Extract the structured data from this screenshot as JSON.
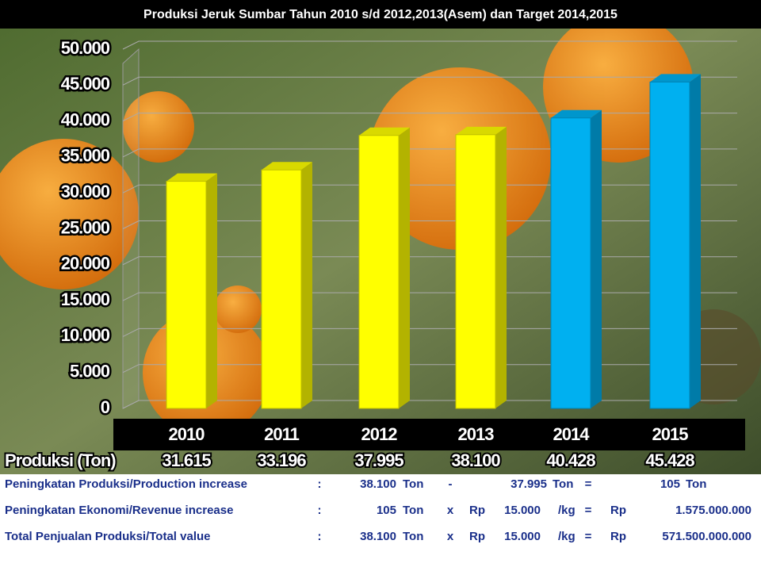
{
  "chart_data": {
    "type": "bar3d",
    "title": "Produksi Jeruk Sumbar Tahun 2010 s/d 2012,2013(Asem)  dan Target  2014,2015",
    "categories": [
      "2010",
      "2011",
      "2012",
      "2013",
      "2014",
      "2015"
    ],
    "values": [
      31615,
      33196,
      37995,
      38100,
      40428,
      45428
    ],
    "value_labels": [
      "31.615",
      "33.196",
      "37.995",
      "38.100",
      "40.428",
      "45.428"
    ],
    "values_row_label": "Produksi (Ton)",
    "colors": [
      "#ffff00",
      "#ffff00",
      "#ffff00",
      "#ffff00",
      "#00b0f0",
      "#00b0f0"
    ],
    "ylim": [
      0,
      50000
    ],
    "yticks": [
      0,
      {
        "value": 5000,
        "label": "5.000"
      },
      {
        "value": 10000,
        "label": "10.000"
      },
      {
        "value": 15000,
        "label": "15.000"
      },
      {
        "value": 20000,
        "label": "20.000"
      },
      {
        "value": 25000,
        "label": "25.000"
      },
      {
        "value": 30000,
        "label": "30.000"
      },
      {
        "value": 35000,
        "label": "35.000"
      },
      {
        "value": 40000,
        "label": "40.000"
      },
      {
        "value": 45000,
        "label": "45.000"
      },
      {
        "value": 50000,
        "label": "50.000"
      }
    ],
    "grid": true
  },
  "table": {
    "rows": [
      [
        "Peningkatan Produksi/Production increase",
        ":",
        "38.100",
        "Ton",
        "-",
        "37.995",
        "Ton",
        "=",
        "105",
        "Ton"
      ],
      [
        "Peningkatan Ekonomi/Revenue increase",
        ":",
        "105",
        "Ton",
        "x",
        "Rp",
        "15.000",
        "/kg",
        "=",
        "Rp",
        "1.575.000.000"
      ],
      [
        "Total Penjualan Produksi/Total  value",
        ":",
        "38.100",
        "Ton",
        "x",
        "Rp",
        "15.000",
        "/kg",
        "=",
        "Rp",
        "571.500.000.000"
      ]
    ]
  }
}
